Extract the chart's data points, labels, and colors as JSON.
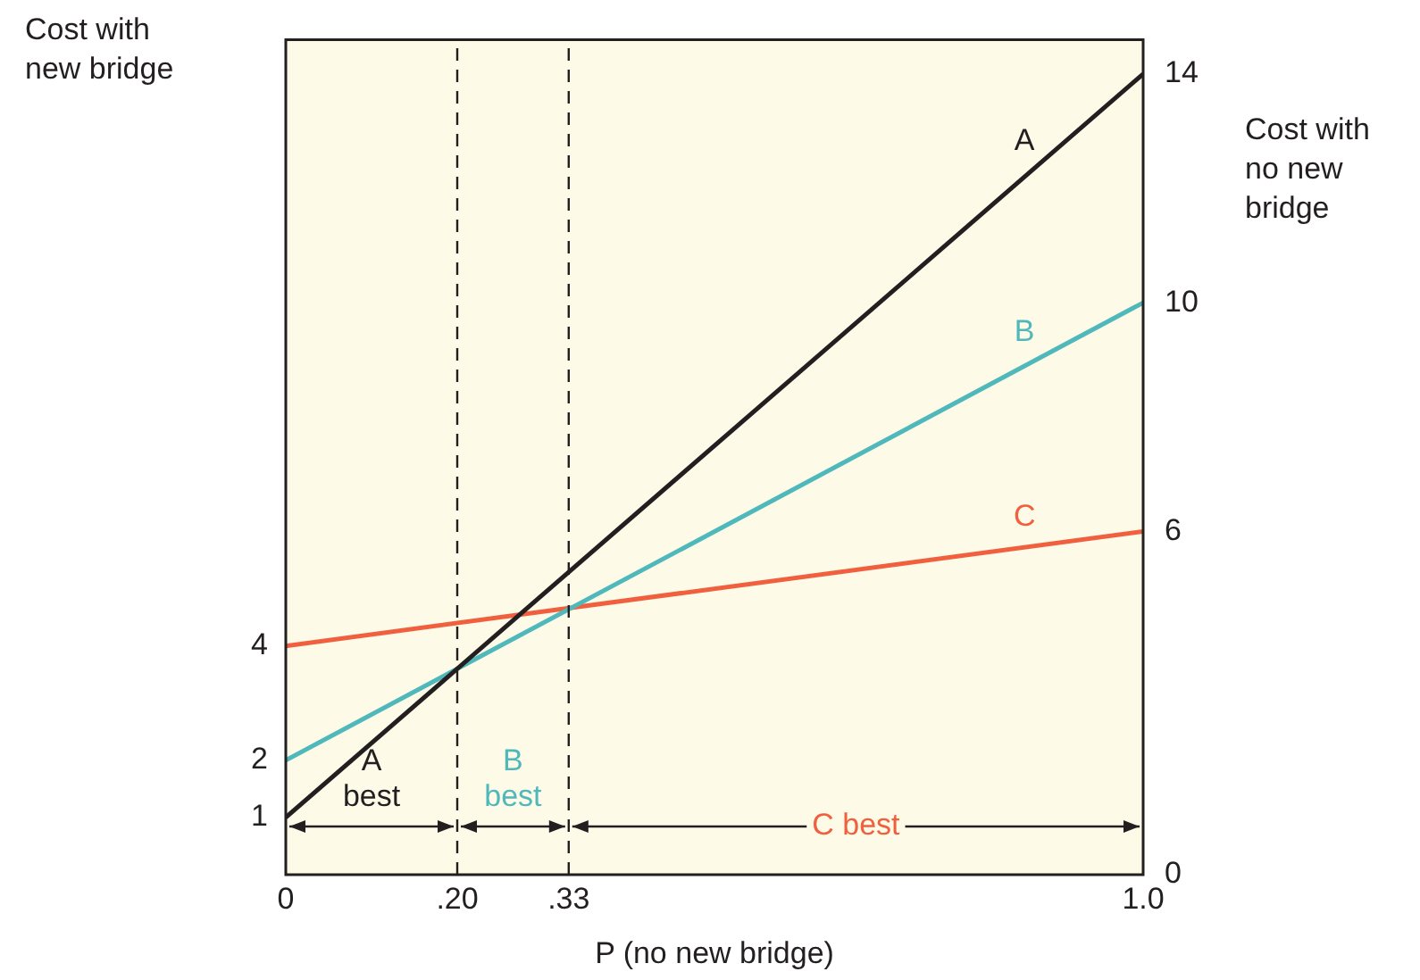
{
  "chart_data": {
    "type": "line",
    "xlabel": "P (no new bridge)",
    "ylabel": "Cost with\nnew bridge",
    "y2label": "Cost with\nno new\nbridge",
    "x": [
      0,
      1
    ],
    "series": [
      {
        "name": "A",
        "color": "#231f20",
        "values": [
          1,
          14
        ]
      },
      {
        "name": "B",
        "color": "#4fb8bb",
        "values": [
          2,
          10
        ]
      },
      {
        "name": "C",
        "color": "#f0603f",
        "values": [
          4,
          6
        ]
      }
    ],
    "xlim": [
      0,
      1
    ],
    "xticks": [
      0,
      {
        "value": 0.2,
        "label": ".20"
      },
      {
        "value": 0.33,
        "label": ".33"
      },
      {
        "value": 1,
        "label": "1.0"
      }
    ],
    "ylim": [
      0,
      14.6
    ],
    "yticks": [
      1,
      2,
      4
    ],
    "y2lim": [
      0,
      14.6
    ],
    "y2ticks": [
      0,
      6,
      10,
      14
    ],
    "ref_lines": [
      {
        "axis": "x",
        "value": 0.2,
        "line_style": "dashed",
        "color": "#231f20"
      },
      {
        "axis": "x",
        "value": 0.33,
        "line_style": "dashed",
        "color": "#231f20"
      }
    ],
    "annotations": [
      "A\nbest",
      "B\nbest",
      "C best"
    ],
    "grid": false,
    "legend": false,
    "marker": "none",
    "line_style": "solid"
  }
}
